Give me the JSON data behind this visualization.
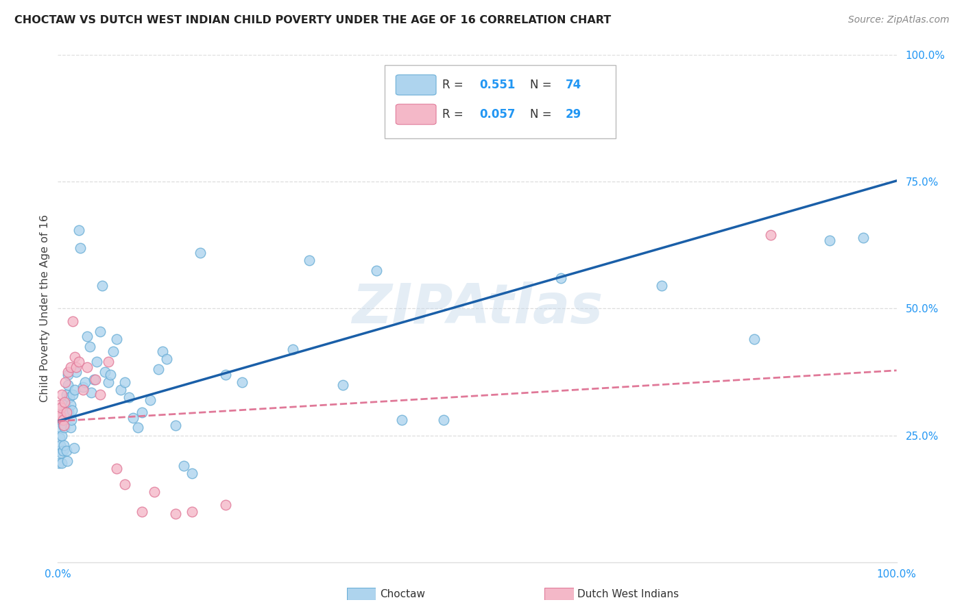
{
  "title": "CHOCTAW VS DUTCH WEST INDIAN CHILD POVERTY UNDER THE AGE OF 16 CORRELATION CHART",
  "source": "Source: ZipAtlas.com",
  "ylabel": "Child Poverty Under the Age of 16",
  "watermark": "ZIPAtlas",
  "choctaw_color": "#aed4ee",
  "choctaw_edge": "#6aaed6",
  "dutch_color": "#f4b8c8",
  "dutch_edge": "#e07898",
  "choctaw_line_color": "#1a5fa8",
  "dutch_line_color": "#e07898",
  "choctaw_R": "0.551",
  "choctaw_N": "74",
  "dutch_R": "0.057",
  "dutch_N": "29",
  "choctaw_label": "Choctaw",
  "dutch_label": "Dutch West Indians",
  "tick_color": "#2196F3",
  "grid_color": "#dddddd",
  "title_color": "#222222",
  "source_color": "#888888",
  "choctaw_x": [
    0.001,
    0.002,
    0.002,
    0.003,
    0.003,
    0.004,
    0.004,
    0.005,
    0.005,
    0.006,
    0.006,
    0.007,
    0.007,
    0.008,
    0.008,
    0.009,
    0.01,
    0.01,
    0.011,
    0.012,
    0.012,
    0.013,
    0.014,
    0.015,
    0.015,
    0.016,
    0.017,
    0.018,
    0.019,
    0.02,
    0.022,
    0.025,
    0.027,
    0.03,
    0.032,
    0.035,
    0.038,
    0.04,
    0.043,
    0.046,
    0.05,
    0.053,
    0.056,
    0.06,
    0.063,
    0.066,
    0.07,
    0.075,
    0.08,
    0.085,
    0.09,
    0.095,
    0.1,
    0.11,
    0.12,
    0.125,
    0.13,
    0.14,
    0.15,
    0.16,
    0.17,
    0.2,
    0.22,
    0.28,
    0.3,
    0.34,
    0.38,
    0.41,
    0.46,
    0.6,
    0.72,
    0.83,
    0.92,
    0.96
  ],
  "choctaw_y": [
    0.195,
    0.22,
    0.245,
    0.265,
    0.23,
    0.28,
    0.215,
    0.195,
    0.25,
    0.27,
    0.22,
    0.23,
    0.3,
    0.285,
    0.265,
    0.31,
    0.33,
    0.22,
    0.2,
    0.35,
    0.37,
    0.295,
    0.325,
    0.265,
    0.31,
    0.28,
    0.3,
    0.33,
    0.225,
    0.34,
    0.375,
    0.655,
    0.62,
    0.345,
    0.355,
    0.445,
    0.425,
    0.335,
    0.36,
    0.395,
    0.455,
    0.545,
    0.375,
    0.355,
    0.37,
    0.415,
    0.44,
    0.34,
    0.355,
    0.325,
    0.285,
    0.265,
    0.295,
    0.32,
    0.38,
    0.415,
    0.4,
    0.27,
    0.19,
    0.175,
    0.61,
    0.37,
    0.355,
    0.42,
    0.595,
    0.35,
    0.575,
    0.28,
    0.28,
    0.56,
    0.545,
    0.44,
    0.635,
    0.64
  ],
  "dutch_x": [
    0.001,
    0.002,
    0.003,
    0.004,
    0.005,
    0.006,
    0.007,
    0.008,
    0.009,
    0.01,
    0.012,
    0.015,
    0.018,
    0.02,
    0.022,
    0.025,
    0.03,
    0.035,
    0.045,
    0.05,
    0.06,
    0.07,
    0.08,
    0.1,
    0.115,
    0.14,
    0.16,
    0.2,
    0.85
  ],
  "dutch_y": [
    0.285,
    0.31,
    0.29,
    0.305,
    0.33,
    0.28,
    0.27,
    0.315,
    0.355,
    0.295,
    0.375,
    0.385,
    0.475,
    0.405,
    0.385,
    0.395,
    0.34,
    0.385,
    0.36,
    0.33,
    0.395,
    0.185,
    0.153,
    0.1,
    0.138,
    0.095,
    0.1,
    0.113,
    0.645
  ],
  "blue_line_x": [
    0.0,
    1.0
  ],
  "blue_line_y": [
    0.278,
    0.752
  ],
  "pink_line_x": [
    0.0,
    1.0
  ],
  "pink_line_y": [
    0.278,
    0.378
  ],
  "xlim": [
    0.0,
    1.0
  ],
  "ylim": [
    0.0,
    1.0
  ],
  "yticks": [
    0.0,
    0.25,
    0.5,
    0.75,
    1.0
  ],
  "ytick_labels": [
    "",
    "25.0%",
    "50.0%",
    "75.0%",
    "100.0%"
  ]
}
